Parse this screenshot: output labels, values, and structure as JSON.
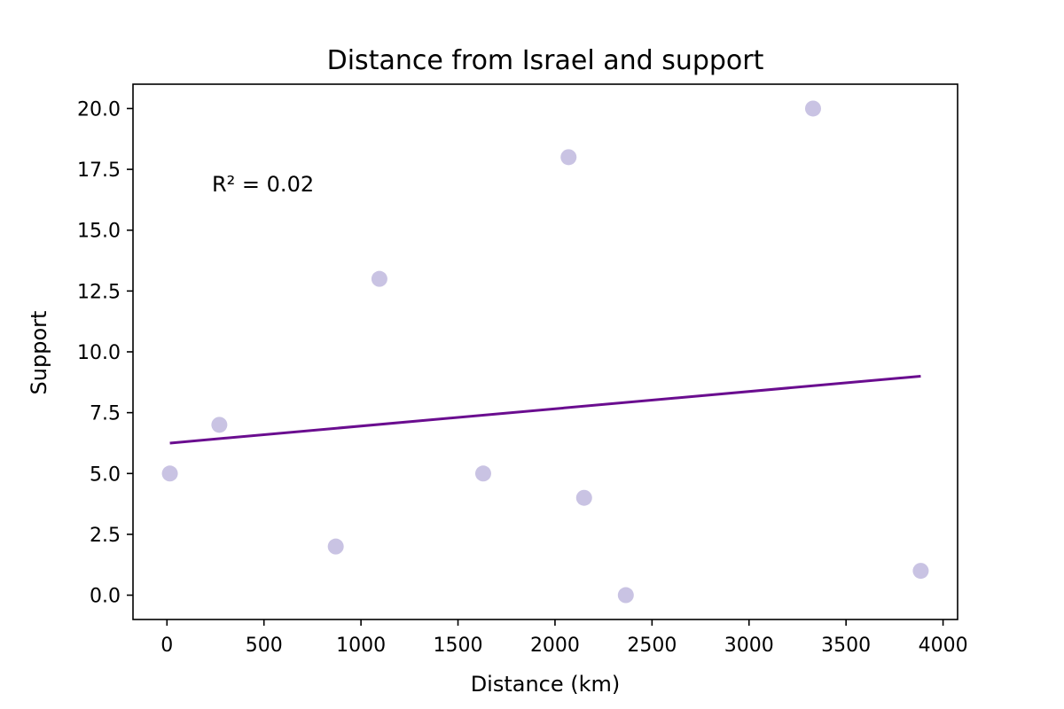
{
  "chart_data": {
    "type": "scatter",
    "title": "Distance  from Israel and support",
    "xlabel": "Distance (km)",
    "ylabel": "Support",
    "xlim": [
      -175,
      4075
    ],
    "ylim": [
      -1,
      21
    ],
    "x_ticks": [
      0,
      500,
      1000,
      1500,
      2000,
      2500,
      3000,
      3500,
      4000
    ],
    "y_ticks": [
      0.0,
      2.5,
      5.0,
      7.5,
      10.0,
      12.5,
      15.0,
      17.5,
      20.0
    ],
    "x_tick_labels": [
      "0",
      "500",
      "1000",
      "1500",
      "2000",
      "2500",
      "3000",
      "3500",
      "4000"
    ],
    "y_tick_labels": [
      "0.0",
      "2.5",
      "5.0",
      "7.5",
      "10.0",
      "12.5",
      "15.0",
      "17.5",
      "20.0"
    ],
    "grid": false,
    "points": [
      {
        "x": 15,
        "y": 5
      },
      {
        "x": 270,
        "y": 7
      },
      {
        "x": 870,
        "y": 2
      },
      {
        "x": 1095,
        "y": 13
      },
      {
        "x": 1630,
        "y": 5
      },
      {
        "x": 2070,
        "y": 18
      },
      {
        "x": 2150,
        "y": 4
      },
      {
        "x": 2365,
        "y": 0
      },
      {
        "x": 3330,
        "y": 20
      },
      {
        "x": 3885,
        "y": 1
      }
    ],
    "trendline": {
      "x": [
        15,
        3885
      ],
      "y": [
        6.25,
        9.0
      ]
    },
    "annotation": {
      "text": "R² = 0.02",
      "x": 250,
      "y": 16.6
    },
    "colors": {
      "points": "#c9c3e3",
      "trendline": "#6a0d8f",
      "axes": "#000000"
    }
  }
}
